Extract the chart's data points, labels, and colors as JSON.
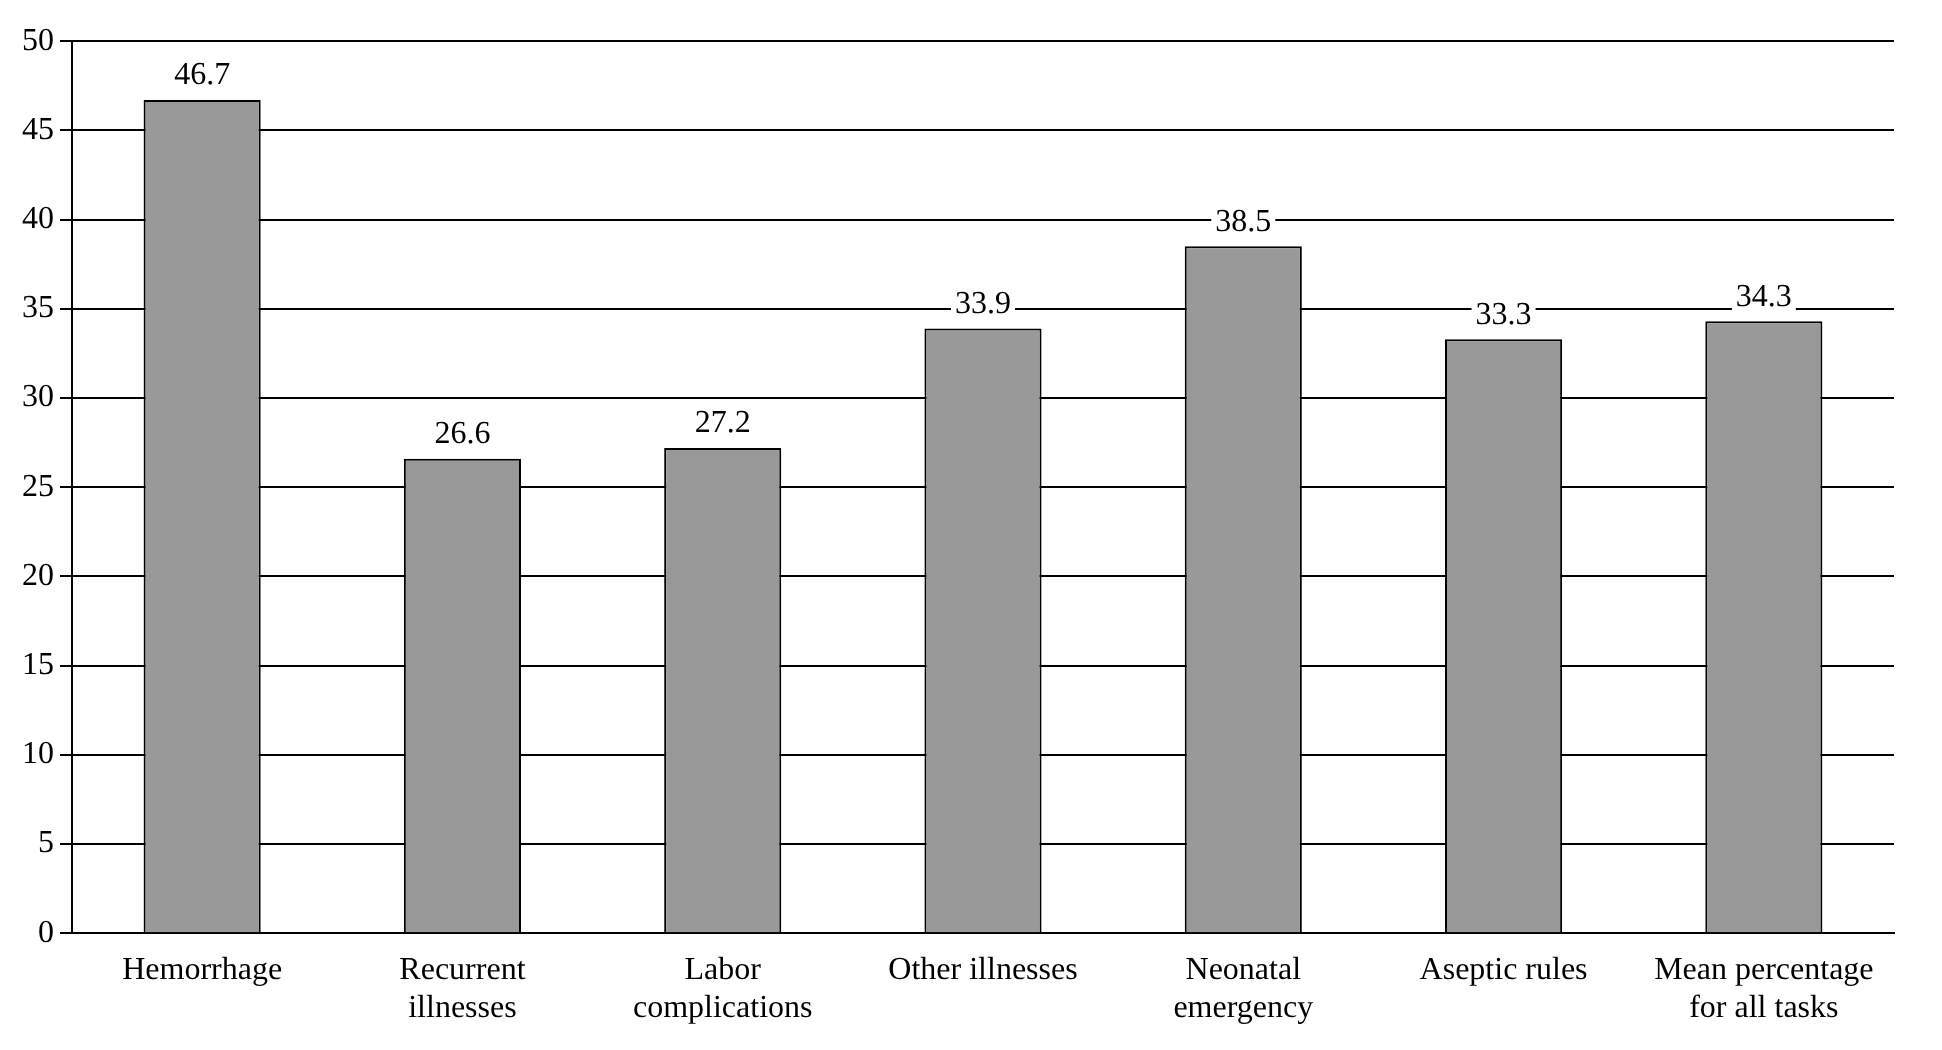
{
  "chart_data": {
    "type": "bar",
    "categories": [
      "Hemorrhage",
      "Recurrent illnesses",
      "Labor complications",
      "Other illnesses",
      "Neonatal emergency",
      "Aseptic rules",
      "Mean percentage for all tasks"
    ],
    "values": [
      46.7,
      26.6,
      27.2,
      33.9,
      38.5,
      33.3,
      34.3
    ],
    "color": "#999999",
    "ylim": [
      0,
      50
    ],
    "yticks": [
      0,
      5,
      10,
      15,
      20,
      25,
      30,
      35,
      40,
      45,
      50
    ],
    "grid": "y",
    "data_labels": true,
    "legend": false
  }
}
